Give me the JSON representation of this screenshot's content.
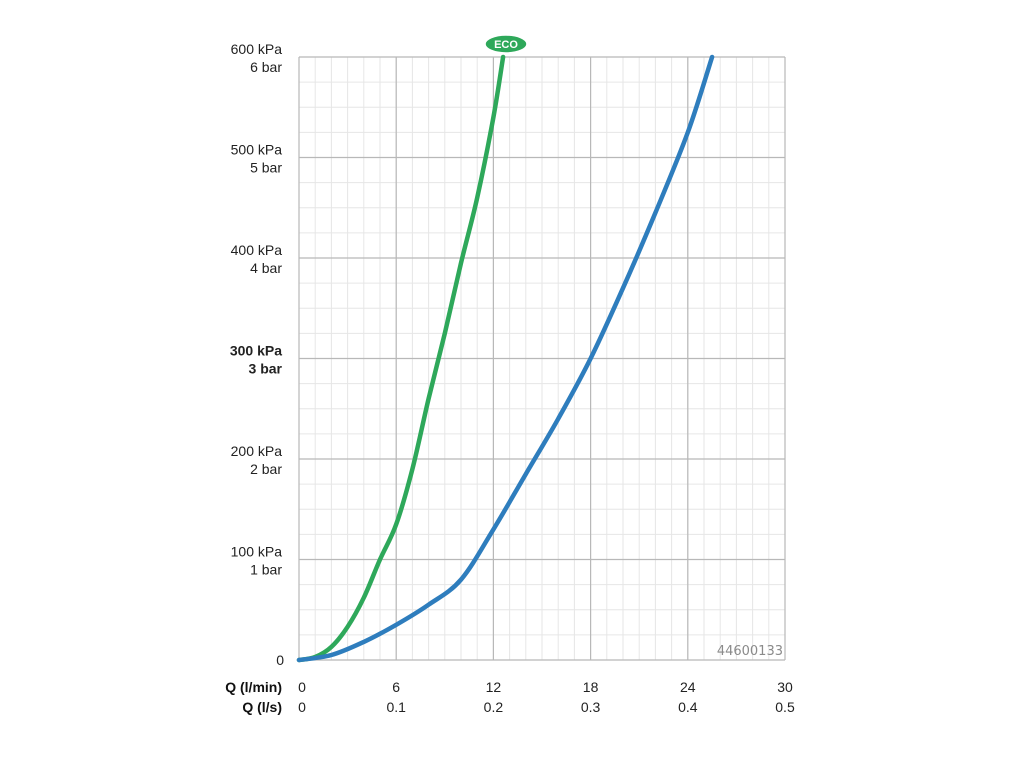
{
  "chart_data": {
    "type": "line",
    "title": "",
    "x_axes": [
      {
        "label": "Q (l/min)",
        "ticks": [
          "0",
          "6",
          "12",
          "18",
          "24",
          "30"
        ]
      },
      {
        "label": "Q (l/s)",
        "ticks": [
          "0",
          "0.1",
          "0.2",
          "0.3",
          "0.4",
          "0.5"
        ]
      }
    ],
    "y_ticks": [
      {
        "kpa": "0",
        "bar": ""
      },
      {
        "kpa": "100 kPa",
        "bar": "1 bar"
      },
      {
        "kpa": "200 kPa",
        "bar": "2 bar"
      },
      {
        "kpa": "300 kPa",
        "bar": "3 bar",
        "bold": true
      },
      {
        "kpa": "400 kPa",
        "bar": "4 bar"
      },
      {
        "kpa": "500 kPa",
        "bar": "5 bar"
      },
      {
        "kpa": "600 kPa",
        "bar": "6 bar"
      }
    ],
    "xlim": [
      0,
      30
    ],
    "ylim": [
      0,
      600
    ],
    "grid": true,
    "series": [
      {
        "color": "#2ea85a",
        "badge": "ECO",
        "points": [
          [
            0,
            0
          ],
          [
            1,
            3
          ],
          [
            2,
            13
          ],
          [
            3,
            33
          ],
          [
            4,
            62
          ],
          [
            5,
            100
          ],
          [
            6,
            135
          ],
          [
            7,
            190
          ],
          [
            8,
            260
          ],
          [
            9,
            325
          ],
          [
            10,
            395
          ],
          [
            11,
            460
          ],
          [
            12,
            540
          ],
          [
            12.6,
            600
          ]
        ]
      },
      {
        "color": "#2e7dbd",
        "points": [
          [
            0,
            0
          ],
          [
            2,
            5
          ],
          [
            4,
            18
          ],
          [
            6,
            35
          ],
          [
            8,
            55
          ],
          [
            10,
            80
          ],
          [
            12,
            130
          ],
          [
            14,
            185
          ],
          [
            16,
            240
          ],
          [
            18,
            300
          ],
          [
            20,
            370
          ],
          [
            22,
            445
          ],
          [
            24,
            525
          ],
          [
            25.5,
            600
          ]
        ]
      }
    ],
    "code": "44600133"
  }
}
